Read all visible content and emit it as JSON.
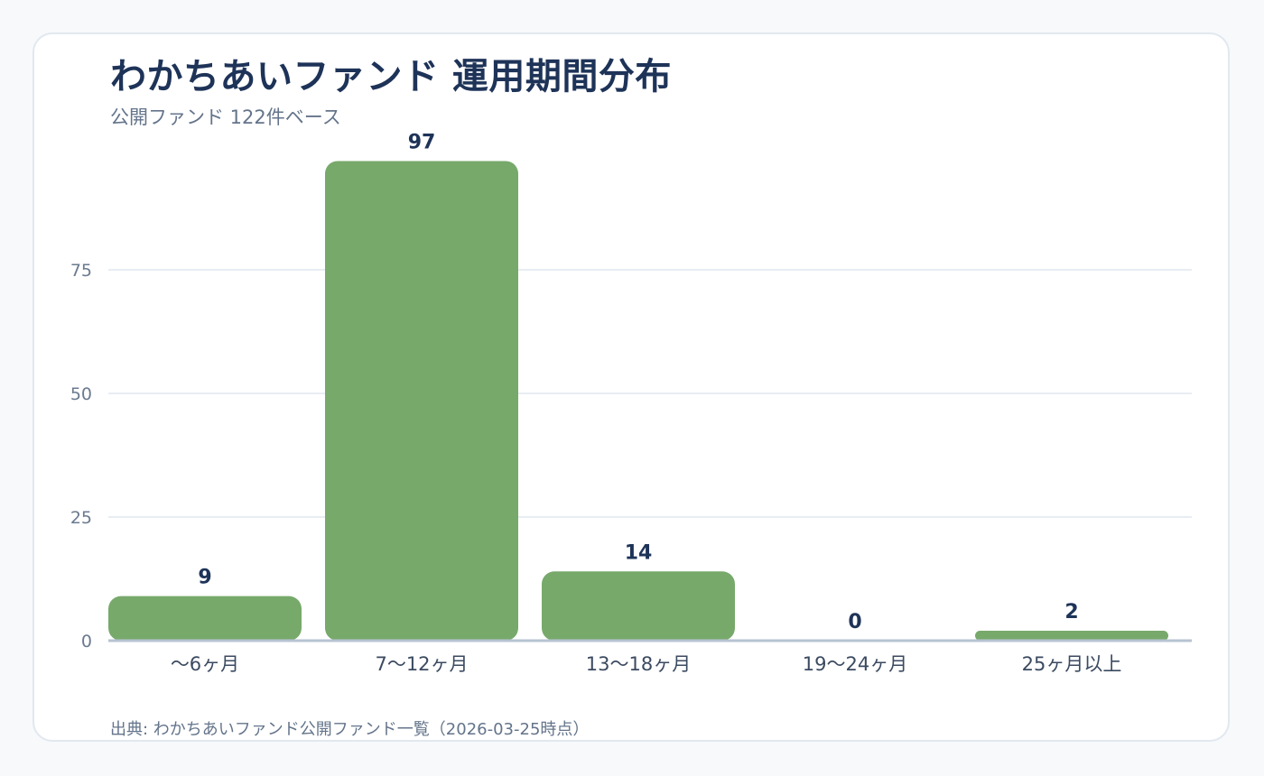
{
  "chart_data": {
    "type": "bar",
    "title": "わかちあいファンド 運用期間分布",
    "subtitle": "公開ファンド 122件ベース",
    "source": "出典: わかちあいファンド公開ファンド一覧（2026-03-25時点）",
    "categories": [
      "〜6ヶ月",
      "7〜12ヶ月",
      "13〜18ヶ月",
      "19〜24ヶ月",
      "25ヶ月以上"
    ],
    "values": [
      9,
      97,
      14,
      0,
      2
    ],
    "value_labels": [
      "9",
      "97",
      "14",
      "0",
      "2"
    ],
    "xlabel": "",
    "ylabel": "",
    "ylim": [
      0,
      100
    ],
    "yticks": [
      0,
      25,
      50,
      75
    ],
    "ytick_labels": [
      "0",
      "25",
      "50",
      "75"
    ],
    "grid": true,
    "bar_color": "#77a96b",
    "legend": "none"
  }
}
